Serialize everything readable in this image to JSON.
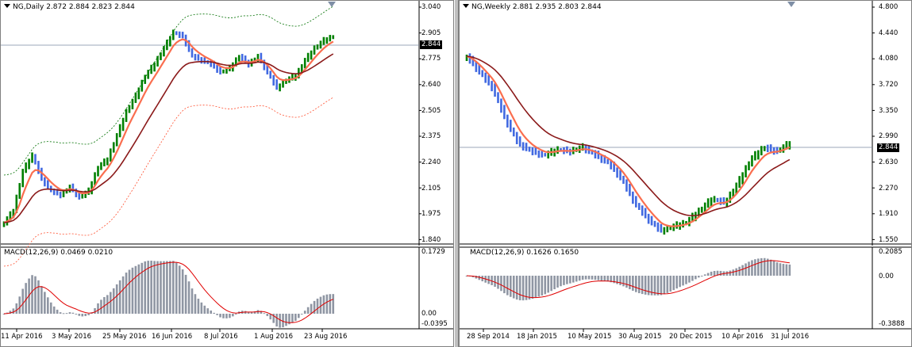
{
  "left_chart": {
    "header": "NG,Daily  2.872 2.884 2.823 2.844",
    "macd_header": "MACD(12,26,9) 0.0469 0.0210",
    "price_axis": [
      "3.040",
      "2.905",
      "2.775",
      "2.640",
      "2.505",
      "2.375",
      "2.240",
      "2.105",
      "1.975",
      "1.840"
    ],
    "macd_axis": [
      "0.1729",
      "0.00",
      "-0.0395"
    ],
    "current_price": "2.844",
    "time_axis": [
      "11 Apr 2016",
      "3 May 2016",
      "25 May 2016",
      "16 Jun 2016",
      "8 Jul 2016",
      "1 Aug 2016",
      "23 Aug 2016"
    ]
  },
  "right_chart": {
    "header": "NG,Weekly  2.881 2.935 2.803 2.844",
    "macd_header": "MACD(12,26,9) 0.1626 0.1650",
    "price_axis": [
      "4.800",
      "4.440",
      "4.080",
      "3.720",
      "3.350",
      "2.990",
      "2.630",
      "2.270",
      "1.910",
      "1.550"
    ],
    "macd_axis": [
      "0.2085",
      "0.00",
      "-0.3888"
    ],
    "current_price": "2.844",
    "time_axis": [
      "28 Sep 2014",
      "18 Jan 2015",
      "10 May 2015",
      "30 Aug 2015",
      "20 Dec 2015",
      "10 Apr 2016",
      "31 Jul 2016"
    ]
  },
  "colors": {
    "bull": "#008000",
    "bear": "#4169e1",
    "ema_fast": "#fa6e4f",
    "ema_slow": "#8b1a1a",
    "macd_hist": "#8f96a3",
    "macd_signal": "#e00000"
  }
}
